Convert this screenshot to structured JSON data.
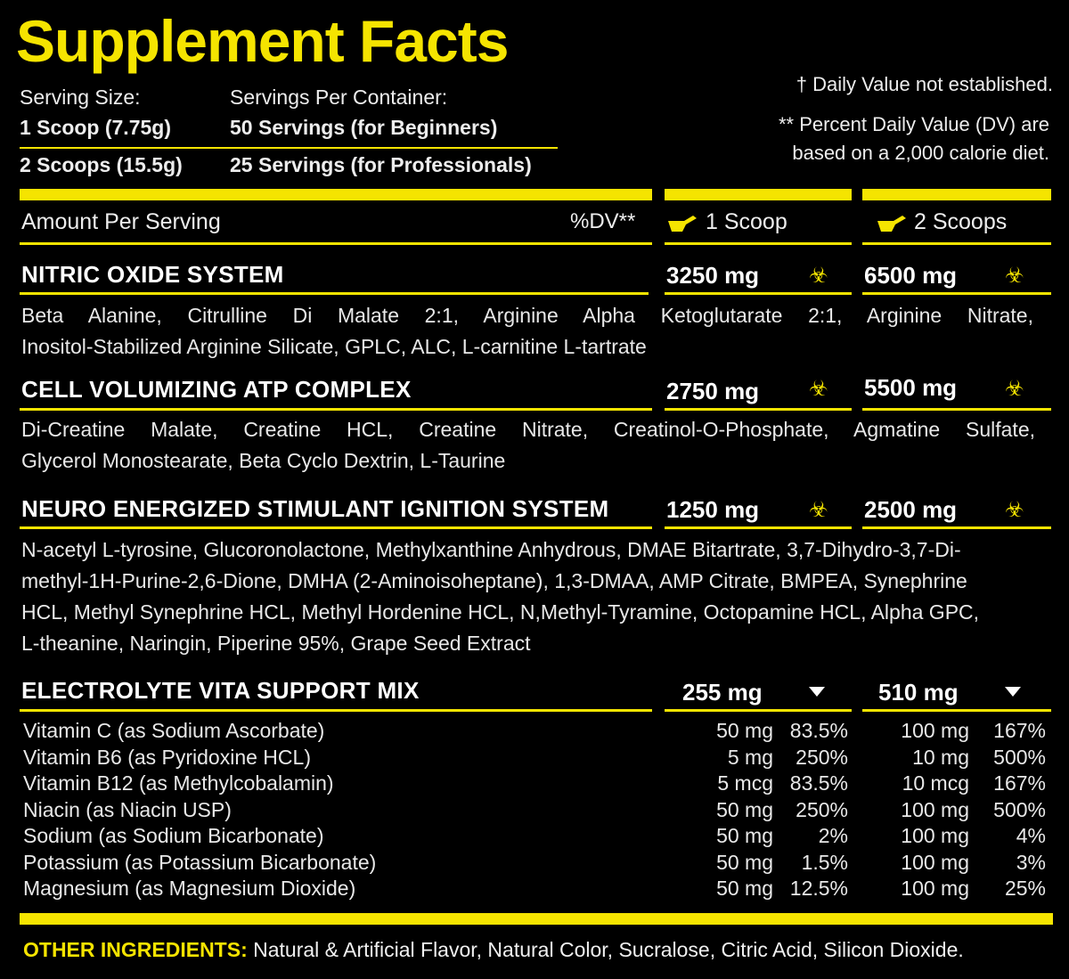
{
  "title": "Supplement Facts",
  "serving": {
    "size_label": "Serving Size:",
    "per_container_label": "Servings Per Container:",
    "size_1": "1 Scoop (7.75g)",
    "servings_1": "50 Servings (for Beginners)",
    "size_2": "2 Scoops (15.5g)",
    "servings_2": "25 Servings (for Professionals)"
  },
  "notes": {
    "dagger": "† Daily Value not established.",
    "dv_line1": "** Percent Daily Value (DV) are",
    "dv_line2": "based on a 2,000 calorie diet."
  },
  "header": {
    "amount_per_serving": "Amount Per Serving",
    "dv": "%DV**",
    "col1": "1 Scoop",
    "col2": "2 Scoops",
    "scoop_icon": "scoop-icon"
  },
  "sections": [
    {
      "name": "NITRIC OXIDE SYSTEM",
      "amount_1": "3250 mg",
      "amount_2": "6500 mg",
      "icon": "biohazard-icon",
      "lines": [
        "Beta Alanine, Citrulline Di Malate 2:1, Arginine Alpha Ketoglutarate 2:1, Arginine Nitrate,",
        "Inositol-Stabilized Arginine Silicate, GPLC, ALC, L-carnitine L-tartrate"
      ]
    },
    {
      "name": "CELL VOLUMIZING ATP COMPLEX",
      "amount_1": "2750 mg",
      "amount_2": "5500 mg",
      "icon": "biohazard-icon",
      "lines": [
        "Di-Creatine Malate, Creatine HCL, Creatine Nitrate, Creatinol-O-Phosphate, Agmatine Sulfate,",
        "Glycerol Monostearate, Beta Cyclo Dextrin, L-Taurine"
      ]
    },
    {
      "name": "NEURO ENERGIZED STIMULANT IGNITION SYSTEM",
      "amount_1": "1250 mg",
      "amount_2": "2500 mg",
      "icon": "biohazard-icon",
      "lines": [
        "N-acetyl L-tyrosine, Glucoronolactone, Methylxanthine Anhydrous, DMAE Bitartrate, 3,7-Dihydro-3,7-Di-",
        "methyl-1H-Purine-2,6-Dione, DMHA (2-Aminoisoheptane), 1,3-DMAA, AMP Citrate, BMPEA, Synephrine",
        "HCL, Methyl Synephrine HCL, Methyl Hordenine HCL, N,Methyl-Tyramine, Octopamine HCL, Alpha GPC,",
        "L-theanine, Naringin, Piperine 95%, Grape Seed Extract"
      ]
    },
    {
      "name": "ELECTROLYTE VITA SUPPORT MIX",
      "amount_1": "255 mg",
      "amount_2": "510 mg",
      "icon": "triangle-down-icon"
    }
  ],
  "vitamins": [
    {
      "name": "Vitamin C (as Sodium Ascorbate)",
      "amt1": "50 mg",
      "dv1": "83.5%",
      "amt2": "100 mg",
      "dv2": "167%"
    },
    {
      "name": "Vitamin B6 (as Pyridoxine HCL)",
      "amt1": "5 mg",
      "dv1": "250%",
      "amt2": "10 mg",
      "dv2": "500%"
    },
    {
      "name": "Vitamin B12 (as Methylcobalamin)",
      "amt1": "5 mcg",
      "dv1": "83.5%",
      "amt2": "10 mcg",
      "dv2": "167%"
    },
    {
      "name": "Niacin (as Niacin USP)",
      "amt1": "50 mg",
      "dv1": "250%",
      "amt2": "100 mg",
      "dv2": "500%"
    },
    {
      "name": "Sodium (as Sodium Bicarbonate)",
      "amt1": "50 mg",
      "dv1": "2%",
      "amt2": "100 mg",
      "dv2": "4%"
    },
    {
      "name": "Potassium (as Potassium Bicarbonate)",
      "amt1": "50 mg",
      "dv1": "1.5%",
      "amt2": "100 mg",
      "dv2": "3%"
    },
    {
      "name": "Magnesium (as Magnesium Dioxide)",
      "amt1": "50 mg",
      "dv1": "12.5%",
      "amt2": "100 mg",
      "dv2": "25%"
    }
  ],
  "other": {
    "label": "OTHER INGREDIENTS:",
    "text": " Natural & Artificial Flavor, Natural Color, Sucralose, Citric Acid, Silicon Dioxide."
  },
  "colors": {
    "accent": "#f5e400",
    "background": "#000000",
    "text": "#ffffff"
  }
}
